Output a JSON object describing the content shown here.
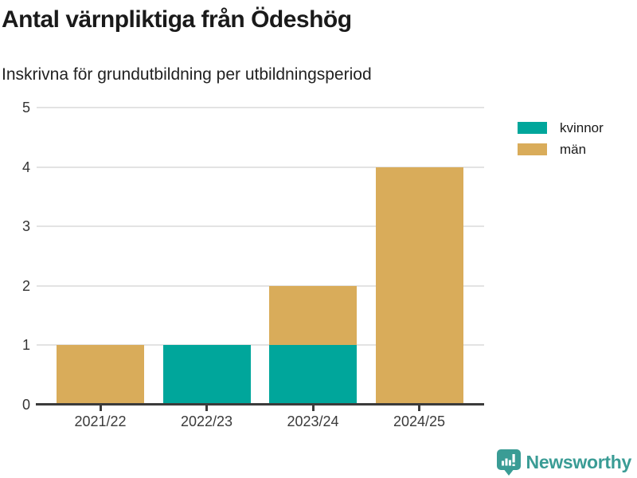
{
  "chart": {
    "title": "Antal värnpliktiga från Ödeshög",
    "subtitle": "Inskrivna för grundutbildning per utbildningsperiod"
  },
  "chart_data": {
    "type": "bar",
    "stacked": true,
    "title": "Antal värnpliktiga från Ödeshög",
    "subtitle": "Inskrivna för grundutbildning per utbildningsperiod",
    "categories": [
      "2021/22",
      "2022/23",
      "2023/24",
      "2024/25"
    ],
    "series": [
      {
        "name": "kvinnor",
        "color": "#00a69b",
        "values": [
          0,
          1,
          1,
          0
        ]
      },
      {
        "name": "män",
        "color": "#d9ac5a",
        "values": [
          1,
          0,
          1,
          4
        ]
      }
    ],
    "totals": [
      1,
      1,
      2,
      4
    ],
    "xlabel": "",
    "ylabel": "",
    "ylim": [
      0,
      5
    ],
    "yticks": [
      0,
      1,
      2,
      3,
      4,
      5
    ],
    "grid": true,
    "legend_position": "top-right"
  },
  "branding": {
    "logo_text": "Newsworthy",
    "logo_color": "#3a9c95",
    "logo_icon": "bar-chart-speech-bubble"
  },
  "colors": {
    "background": "#ffffff",
    "title_text": "#1a1a1a",
    "axis_text": "#3a3a3a",
    "axis_line": "#3b3b3b",
    "gridline": "#e3e3e3"
  }
}
